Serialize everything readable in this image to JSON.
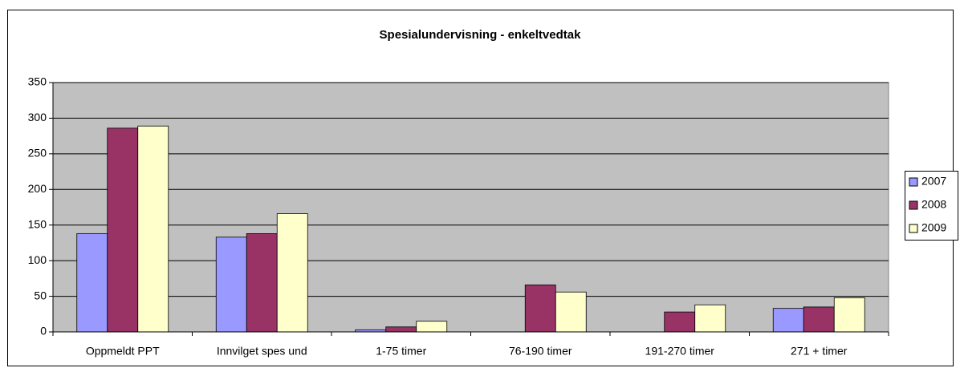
{
  "chart_data": {
    "type": "bar",
    "title": "Spesialundervisning - enkeltvedtak",
    "categories": [
      "Oppmeldt PPT",
      "Innvilget spes und",
      "1-75 timer",
      "76-190 timer",
      "191-270 timer",
      "271 + timer"
    ],
    "series": [
      {
        "name": "2007",
        "color": "#9999ff",
        "values": [
          138,
          133,
          3,
          null,
          null,
          33
        ]
      },
      {
        "name": "2008",
        "color": "#993366",
        "values": [
          286,
          138,
          7,
          66,
          28,
          35
        ]
      },
      {
        "name": "2009",
        "color": "#ffffcc",
        "values": [
          289,
          166,
          15,
          56,
          38,
          48
        ]
      }
    ],
    "ylim": [
      0,
      350
    ],
    "yticks": [
      0,
      50,
      100,
      150,
      200,
      250,
      300,
      350
    ],
    "grid": true,
    "legend": "right"
  }
}
